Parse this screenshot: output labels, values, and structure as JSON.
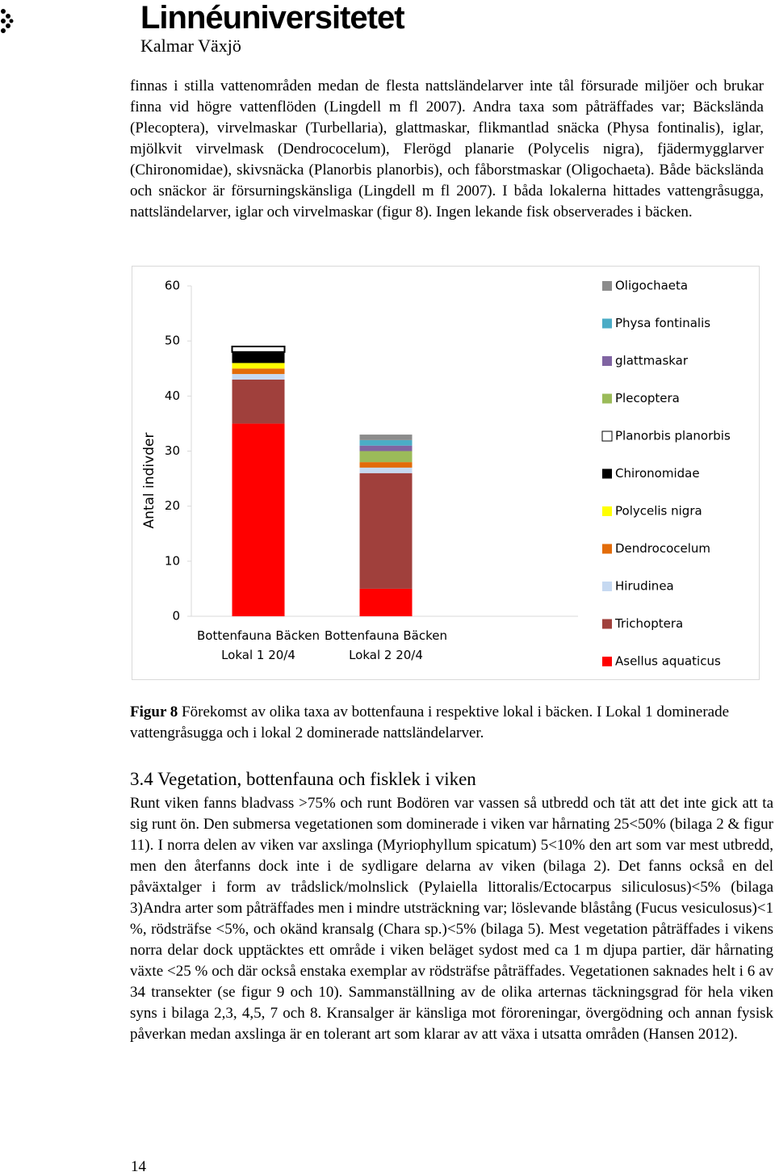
{
  "header": {
    "logo": "Linnéuniversitetet",
    "subtitle": "Kalmar Växjö"
  },
  "paragraph": "finnas i stilla vattenområden medan de flesta nattsländelarver inte tål försurade miljöer och brukar finna vid högre vattenflöden (Lingdell m fl 2007). Andra taxa som påträffades var; Bäckslända (Plecoptera), virvelmaskar (Turbellaria), glattmaskar, flikmantlad snäcka (Physa fontinalis), iglar, mjölkvit virvelmask (Dendrococelum), Flerögd planarie (Polycelis nigra), fjädermygglarver (Chironomidae), skivsnäcka (Planorbis planorbis), och fåborstmaskar (Oligochaeta). Både bäckslända och snäckor är försurningskänsliga (Lingdell m fl 2007). I båda lokalerna hittades vattengråsugga, nattsländelarver, iglar och virvelmaskar (figur 8). Ingen lekande fisk observerades i bäcken.",
  "chart_data": {
    "type": "bar",
    "stacked": true,
    "y_label": "Antal indivder",
    "categories": [
      "Bottenfauna Bäcken Lokal 1 20/4",
      "Bottenfauna Bäcken Lokal 2 20/4"
    ],
    "series": [
      {
        "name": "Oligochaeta",
        "color": "#8c8c8c",
        "values": [
          0,
          1
        ]
      },
      {
        "name": "Physa fontinalis",
        "color": "#4bacc6",
        "values": [
          0,
          1
        ]
      },
      {
        "name": "glattmaskar",
        "color": "#8064a2",
        "values": [
          0,
          1
        ]
      },
      {
        "name": "Plecoptera",
        "color": "#9bbb59",
        "values": [
          0,
          2
        ]
      },
      {
        "name": "Planorbis planorbis",
        "color": "#ffffff",
        "values": [
          1,
          0
        ]
      },
      {
        "name": "Chironomidae",
        "color": "#000000",
        "values": [
          2,
          0
        ]
      },
      {
        "name": "Polycelis nigra",
        "color": "#ffff00",
        "values": [
          1,
          0
        ]
      },
      {
        "name": "Dendrococelum",
        "color": "#e36c09",
        "values": [
          1,
          1
        ]
      },
      {
        "name": "Hirudinea",
        "color": "#c6d9f1",
        "values": [
          1,
          1
        ]
      },
      {
        "name": "Trichoptera",
        "color": "#a0403c",
        "values": [
          8,
          21
        ]
      },
      {
        "name": "Asellus aquaticus",
        "color": "#ff0000",
        "values": [
          35,
          5
        ]
      }
    ],
    "ylim": [
      0,
      60
    ],
    "yticks": [
      0,
      10,
      20,
      30,
      40,
      50,
      60
    ],
    "legend": "right"
  },
  "caption": {
    "label": "Figur 8",
    "text": "Förekomst av olika taxa av bottenfauna i respektive lokal i bäcken. I Lokal 1 dominerade vattengråsugga och i lokal 2 dominerade nattsländelarver."
  },
  "section": {
    "heading": "3.4 Vegetation, bottenfauna och fisklek i viken",
    "text": "Runt viken fanns bladvass >75% och runt Bodören var vassen så utbredd och tät att det inte gick att ta sig runt ön. Den submersa vegetationen som dominerade i viken var hårnating 25<50% (bilaga 2 & figur 11). I norra delen av viken var axslinga (Myriophyllum spicatum) 5<10% den art som var mest utbredd, men den återfanns dock inte i de sydligare delarna av viken (bilaga 2). Det fanns också en del påväxtalger i form av trådslick/molnslick (Pylaiella littoralis/Ectocarpus siliculosus)<5% (bilaga 3)Andra arter som påträffades men i mindre utsträckning var; löslevande blåstång (Fucus vesiculosus)<1 %, rödsträfse <5%, och okänd kransalg (Chara sp.)<5% (bilaga 5). Mest vegetation påträffades i vikens norra delar dock upptäcktes ett område i viken beläget sydost med ca 1 m djupa partier, där hårnating växte <25 % och där också enstaka exemplar av rödsträfse påträffades. Vegetationen saknades helt i 6 av 34 transekter (se figur 9 och 10). Sammanställning av de olika arternas täckningsgrad för hela viken syns i bilaga 2,3, 4,5, 7 och 8. Kransalger är känsliga mot föroreningar, övergödning och annan fysisk påverkan medan axslinga är en tolerant art som klarar av att växa i utsatta områden (Hansen 2012)."
  },
  "page_number": "14"
}
